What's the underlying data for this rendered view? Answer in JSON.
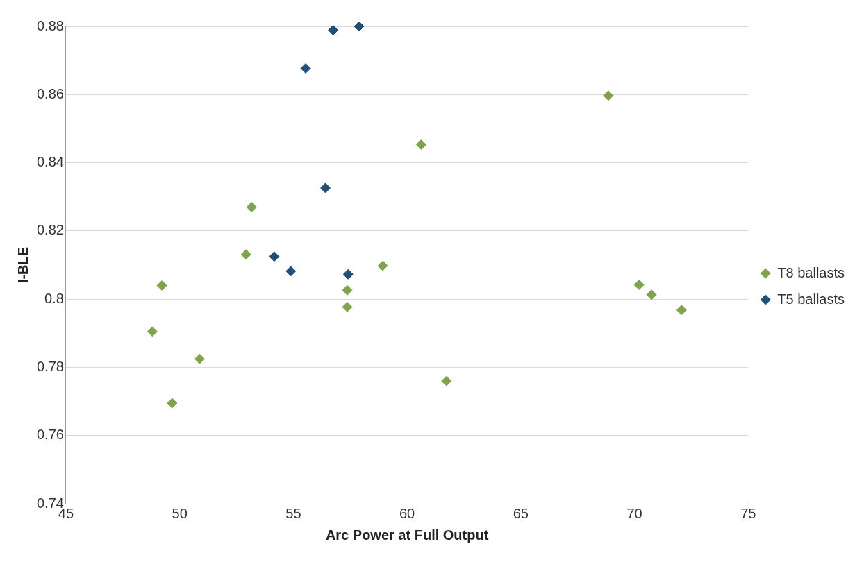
{
  "chart_data": {
    "type": "scatter",
    "xlabel": "Arc Power at Full Output",
    "ylabel": "I-BLE",
    "xlim": [
      45,
      75
    ],
    "xticks": [
      45,
      50,
      55,
      60,
      65,
      70,
      75
    ],
    "ylim": [
      0.74,
      0.88
    ],
    "yticks": [
      0.74,
      0.76,
      0.78,
      0.8,
      0.82,
      0.84,
      0.86,
      0.88
    ],
    "grid": "y",
    "legend": "right",
    "marker": "diamond",
    "series": [
      {
        "name": "T8 ballasts",
        "color": "#7ea44b",
        "x": [
          48.8,
          49.22,
          49.67,
          50.88,
          52.92,
          53.16,
          57.37,
          57.37,
          58.93,
          60.62,
          61.73,
          68.85,
          70.2,
          70.75,
          72.07
        ],
        "values": [
          0.7905,
          0.804,
          0.7695,
          0.7825,
          0.8131,
          0.827,
          0.8026,
          0.7977,
          0.8098,
          0.8453,
          0.776,
          0.8597,
          0.8042,
          0.8013,
          0.7968
        ]
      },
      {
        "name": "T5 ballasts",
        "color": "#1f4e79",
        "x": [
          55.54,
          56.75,
          57.89,
          56.41,
          54.16,
          54.89,
          57.41
        ],
        "values": [
          0.8677,
          0.8789,
          0.88,
          0.8326,
          0.8125,
          0.8082,
          0.8073
        ]
      }
    ]
  }
}
